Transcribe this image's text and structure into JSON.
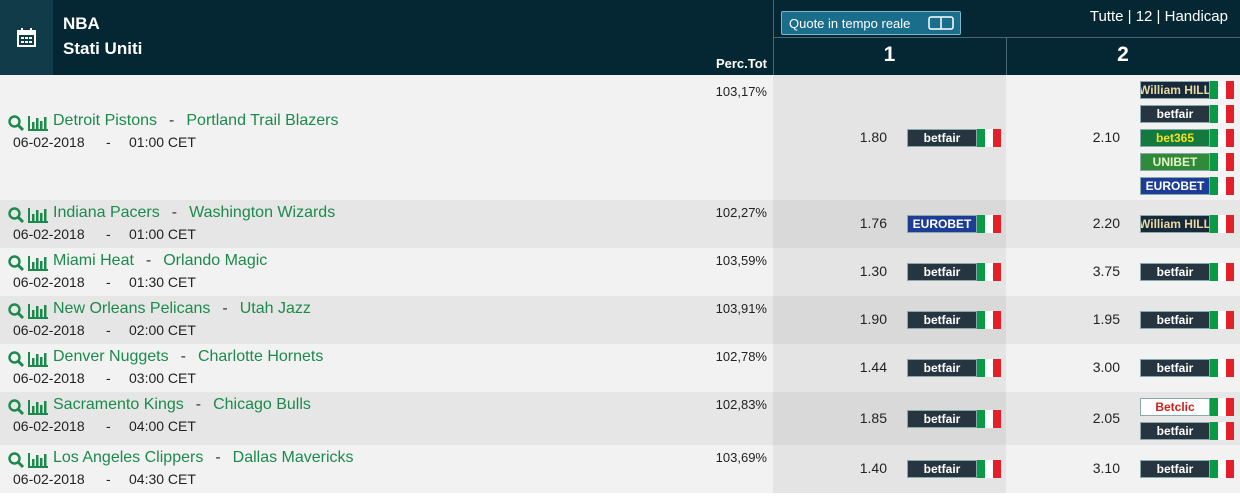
{
  "header": {
    "league": "NBA",
    "country": "Stati Uniti",
    "live_button": "Quote in tempo reale",
    "filter": "Tutte | 12 | Handicap",
    "perc_column": "Perc.Tot",
    "columns": [
      "1",
      "2"
    ]
  },
  "separator": "-",
  "bookmakers": {
    "betfair": {
      "label": "betfair",
      "bg": "#26353f",
      "fg": "#ffffff"
    },
    "eurobet": {
      "label": "EUROBET",
      "bg": "#1c3c96",
      "fg": "#ffffff"
    },
    "williamhill": {
      "label": "William HILL",
      "bg": "#17293a",
      "fg": "#e8d9a0"
    },
    "bet365": {
      "label": "bet365",
      "bg": "#127a3e",
      "fg": "#f5e11b"
    },
    "unibet": {
      "label": "UNIBET",
      "bg": "#2f8a3a",
      "fg": "#e8f2c8"
    },
    "betclic": {
      "label": "Betclic",
      "bg": "#ffffff",
      "fg": "#d0201a"
    }
  },
  "rows": [
    {
      "home": "Detroit Pistons",
      "away": "Portland Trail Blazers",
      "date": "06-02-2018",
      "time": "01:00 CET",
      "perc": "103,17%",
      "odds": [
        {
          "value": "1.80",
          "books": [
            "betfair"
          ]
        },
        {
          "value": "2.10",
          "books": [
            "williamhill",
            "betfair",
            "bet365",
            "unibet",
            "eurobet"
          ]
        }
      ]
    },
    {
      "home": "Indiana Pacers",
      "away": "Washington Wizards",
      "date": "06-02-2018",
      "time": "01:00 CET",
      "perc": "102,27%",
      "odds": [
        {
          "value": "1.76",
          "books": [
            "eurobet"
          ]
        },
        {
          "value": "2.20",
          "books": [
            "williamhill"
          ]
        }
      ]
    },
    {
      "home": "Miami Heat",
      "away": "Orlando Magic",
      "date": "06-02-2018",
      "time": "01:30 CET",
      "perc": "103,59%",
      "odds": [
        {
          "value": "1.30",
          "books": [
            "betfair"
          ]
        },
        {
          "value": "3.75",
          "books": [
            "betfair"
          ]
        }
      ]
    },
    {
      "home": "New Orleans Pelicans",
      "away": "Utah Jazz",
      "date": "06-02-2018",
      "time": "02:00 CET",
      "perc": "103,91%",
      "odds": [
        {
          "value": "1.90",
          "books": [
            "betfair"
          ]
        },
        {
          "value": "1.95",
          "books": [
            "betfair"
          ]
        }
      ]
    },
    {
      "home": "Denver Nuggets",
      "away": "Charlotte Hornets",
      "date": "06-02-2018",
      "time": "03:00 CET",
      "perc": "102,78%",
      "odds": [
        {
          "value": "1.44",
          "books": [
            "betfair"
          ]
        },
        {
          "value": "3.00",
          "books": [
            "betfair"
          ]
        }
      ]
    },
    {
      "home": "Sacramento Kings",
      "away": "Chicago Bulls",
      "date": "06-02-2018",
      "time": "04:00 CET",
      "perc": "102,83%",
      "odds": [
        {
          "value": "1.85",
          "books": [
            "betfair"
          ]
        },
        {
          "value": "2.05",
          "books": [
            "betclic",
            "betfair"
          ]
        }
      ]
    },
    {
      "home": "Los Angeles Clippers",
      "away": "Dallas Mavericks",
      "date": "06-02-2018",
      "time": "04:30 CET",
      "perc": "103,69%",
      "odds": [
        {
          "value": "1.40",
          "books": [
            "betfair"
          ]
        },
        {
          "value": "3.10",
          "books": [
            "betfair"
          ]
        }
      ]
    }
  ]
}
